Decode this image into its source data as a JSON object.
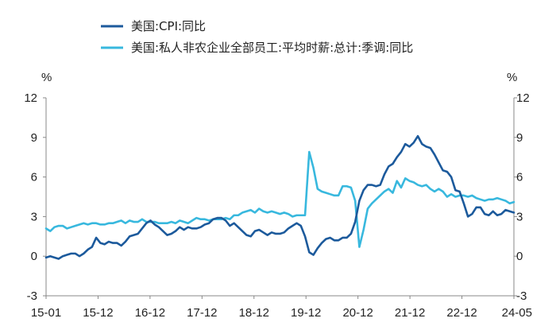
{
  "chart_data": {
    "type": "line",
    "y_unit_left": "%",
    "y_unit_right": "%",
    "ylim": [
      -3,
      12
    ],
    "y_ticks": [
      "12",
      "9",
      "6",
      "3",
      "0",
      "-3"
    ],
    "x_range": [
      "2015-01",
      "2024-05"
    ],
    "x_tick_labels": [
      "15-01",
      "15-12",
      "16-12",
      "17-12",
      "18-12",
      "19-12",
      "20-12",
      "21-12",
      "22-12",
      "24-05"
    ],
    "grid": false,
    "legend_position": "top-left",
    "series": [
      {
        "name": "美国:CPI:同比",
        "color": "#1c5a9c",
        "values": [
          [
            "2015-01",
            -0.1
          ],
          [
            "2015-02",
            0.0
          ],
          [
            "2015-03",
            -0.1
          ],
          [
            "2015-04",
            -0.2
          ],
          [
            "2015-05",
            0.0
          ],
          [
            "2015-06",
            0.1
          ],
          [
            "2015-07",
            0.2
          ],
          [
            "2015-08",
            0.2
          ],
          [
            "2015-09",
            0.0
          ],
          [
            "2015-10",
            0.2
          ],
          [
            "2015-11",
            0.5
          ],
          [
            "2015-12",
            0.7
          ],
          [
            "2016-01",
            1.4
          ],
          [
            "2016-02",
            1.0
          ],
          [
            "2016-03",
            0.9
          ],
          [
            "2016-04",
            1.1
          ],
          [
            "2016-05",
            1.0
          ],
          [
            "2016-06",
            1.0
          ],
          [
            "2016-07",
            0.8
          ],
          [
            "2016-08",
            1.1
          ],
          [
            "2016-09",
            1.5
          ],
          [
            "2016-10",
            1.6
          ],
          [
            "2016-11",
            1.7
          ],
          [
            "2016-12",
            2.1
          ],
          [
            "2017-01",
            2.5
          ],
          [
            "2017-02",
            2.7
          ],
          [
            "2017-03",
            2.4
          ],
          [
            "2017-04",
            2.2
          ],
          [
            "2017-05",
            1.9
          ],
          [
            "2017-06",
            1.6
          ],
          [
            "2017-07",
            1.7
          ],
          [
            "2017-08",
            1.9
          ],
          [
            "2017-09",
            2.2
          ],
          [
            "2017-10",
            2.0
          ],
          [
            "2017-11",
            2.2
          ],
          [
            "2017-12",
            2.1
          ],
          [
            "2018-01",
            2.1
          ],
          [
            "2018-02",
            2.2
          ],
          [
            "2018-03",
            2.4
          ],
          [
            "2018-04",
            2.5
          ],
          [
            "2018-05",
            2.8
          ],
          [
            "2018-06",
            2.9
          ],
          [
            "2018-07",
            2.9
          ],
          [
            "2018-08",
            2.7
          ],
          [
            "2018-09",
            2.3
          ],
          [
            "2018-10",
            2.5
          ],
          [
            "2018-11",
            2.2
          ],
          [
            "2018-12",
            1.9
          ],
          [
            "2019-01",
            1.6
          ],
          [
            "2019-02",
            1.5
          ],
          [
            "2019-03",
            1.9
          ],
          [
            "2019-04",
            2.0
          ],
          [
            "2019-05",
            1.8
          ],
          [
            "2019-06",
            1.6
          ],
          [
            "2019-07",
            1.8
          ],
          [
            "2019-08",
            1.7
          ],
          [
            "2019-09",
            1.7
          ],
          [
            "2019-10",
            1.8
          ],
          [
            "2019-11",
            2.1
          ],
          [
            "2019-12",
            2.3
          ],
          [
            "2020-01",
            2.5
          ],
          [
            "2020-02",
            2.3
          ],
          [
            "2020-03",
            1.5
          ],
          [
            "2020-04",
            0.3
          ],
          [
            "2020-05",
            0.1
          ],
          [
            "2020-06",
            0.6
          ],
          [
            "2020-07",
            1.0
          ],
          [
            "2020-08",
            1.3
          ],
          [
            "2020-09",
            1.4
          ],
          [
            "2020-10",
            1.2
          ],
          [
            "2020-11",
            1.2
          ],
          [
            "2020-12",
            1.4
          ],
          [
            "2021-01",
            1.4
          ],
          [
            "2021-02",
            1.7
          ],
          [
            "2021-03",
            2.6
          ],
          [
            "2021-04",
            4.2
          ],
          [
            "2021-05",
            5.0
          ],
          [
            "2021-06",
            5.4
          ],
          [
            "2021-07",
            5.4
          ],
          [
            "2021-08",
            5.3
          ],
          [
            "2021-09",
            5.4
          ],
          [
            "2021-10",
            6.2
          ],
          [
            "2021-11",
            6.8
          ],
          [
            "2021-12",
            7.0
          ],
          [
            "2022-01",
            7.5
          ],
          [
            "2022-02",
            7.9
          ],
          [
            "2022-03",
            8.5
          ],
          [
            "2022-04",
            8.3
          ],
          [
            "2022-05",
            8.6
          ],
          [
            "2022-06",
            9.1
          ],
          [
            "2022-07",
            8.5
          ],
          [
            "2022-08",
            8.3
          ],
          [
            "2022-09",
            8.2
          ],
          [
            "2022-10",
            7.7
          ],
          [
            "2022-11",
            7.1
          ],
          [
            "2022-12",
            6.5
          ],
          [
            "2023-01",
            6.4
          ],
          [
            "2023-02",
            6.0
          ],
          [
            "2023-03",
            5.0
          ],
          [
            "2023-04",
            4.9
          ],
          [
            "2023-05",
            4.0
          ],
          [
            "2023-06",
            3.0
          ],
          [
            "2023-07",
            3.2
          ],
          [
            "2023-08",
            3.7
          ],
          [
            "2023-09",
            3.7
          ],
          [
            "2023-10",
            3.2
          ],
          [
            "2023-11",
            3.1
          ],
          [
            "2023-12",
            3.4
          ],
          [
            "2024-01",
            3.1
          ],
          [
            "2024-02",
            3.2
          ],
          [
            "2024-03",
            3.5
          ],
          [
            "2024-04",
            3.4
          ],
          [
            "2024-05",
            3.3
          ]
        ]
      },
      {
        "name": "美国:私人非农企业全部员工:平均时薪:总计:季调:同比",
        "color": "#38b8de",
        "values": [
          [
            "2015-01",
            2.1
          ],
          [
            "2015-02",
            1.9
          ],
          [
            "2015-03",
            2.2
          ],
          [
            "2015-04",
            2.3
          ],
          [
            "2015-05",
            2.3
          ],
          [
            "2015-06",
            2.1
          ],
          [
            "2015-07",
            2.2
          ],
          [
            "2015-08",
            2.3
          ],
          [
            "2015-09",
            2.4
          ],
          [
            "2015-10",
            2.5
          ],
          [
            "2015-11",
            2.4
          ],
          [
            "2015-12",
            2.5
          ],
          [
            "2016-01",
            2.5
          ],
          [
            "2016-02",
            2.4
          ],
          [
            "2016-03",
            2.4
          ],
          [
            "2016-04",
            2.5
          ],
          [
            "2016-05",
            2.5
          ],
          [
            "2016-06",
            2.6
          ],
          [
            "2016-07",
            2.7
          ],
          [
            "2016-08",
            2.5
          ],
          [
            "2016-09",
            2.7
          ],
          [
            "2016-10",
            2.6
          ],
          [
            "2016-11",
            2.6
          ],
          [
            "2016-12",
            2.8
          ],
          [
            "2017-01",
            2.6
          ],
          [
            "2017-02",
            2.6
          ],
          [
            "2017-03",
            2.6
          ],
          [
            "2017-04",
            2.5
          ],
          [
            "2017-05",
            2.5
          ],
          [
            "2017-06",
            2.5
          ],
          [
            "2017-07",
            2.6
          ],
          [
            "2017-08",
            2.5
          ],
          [
            "2017-09",
            2.7
          ],
          [
            "2017-10",
            2.6
          ],
          [
            "2017-11",
            2.5
          ],
          [
            "2017-12",
            2.7
          ],
          [
            "2018-01",
            2.9
          ],
          [
            "2018-02",
            2.8
          ],
          [
            "2018-03",
            2.8
          ],
          [
            "2018-04",
            2.7
          ],
          [
            "2018-05",
            2.8
          ],
          [
            "2018-06",
            2.8
          ],
          [
            "2018-07",
            2.8
          ],
          [
            "2018-08",
            2.9
          ],
          [
            "2018-09",
            2.8
          ],
          [
            "2018-10",
            3.1
          ],
          [
            "2018-11",
            3.1
          ],
          [
            "2018-12",
            3.3
          ],
          [
            "2019-01",
            3.4
          ],
          [
            "2019-02",
            3.5
          ],
          [
            "2019-03",
            3.3
          ],
          [
            "2019-04",
            3.6
          ],
          [
            "2019-05",
            3.4
          ],
          [
            "2019-06",
            3.3
          ],
          [
            "2019-07",
            3.4
          ],
          [
            "2019-08",
            3.3
          ],
          [
            "2019-09",
            3.2
          ],
          [
            "2019-10",
            3.3
          ],
          [
            "2019-11",
            3.2
          ],
          [
            "2019-12",
            3.0
          ],
          [
            "2020-01",
            3.1
          ],
          [
            "2020-02",
            3.1
          ],
          [
            "2020-03",
            3.1
          ],
          [
            "2020-04",
            7.9
          ],
          [
            "2020-05",
            6.7
          ],
          [
            "2020-06",
            5.1
          ],
          [
            "2020-07",
            4.9
          ],
          [
            "2020-08",
            4.8
          ],
          [
            "2020-09",
            4.7
          ],
          [
            "2020-10",
            4.6
          ],
          [
            "2020-11",
            4.6
          ],
          [
            "2020-12",
            5.3
          ],
          [
            "2021-01",
            5.3
          ],
          [
            "2021-02",
            5.2
          ],
          [
            "2021-03",
            4.2
          ],
          [
            "2021-04",
            0.7
          ],
          [
            "2021-05",
            2.0
          ],
          [
            "2021-06",
            3.6
          ],
          [
            "2021-07",
            4.0
          ],
          [
            "2021-08",
            4.3
          ],
          [
            "2021-09",
            4.6
          ],
          [
            "2021-10",
            4.9
          ],
          [
            "2021-11",
            5.1
          ],
          [
            "2021-12",
            4.8
          ],
          [
            "2022-01",
            5.7
          ],
          [
            "2022-02",
            5.2
          ],
          [
            "2022-03",
            5.9
          ],
          [
            "2022-04",
            5.7
          ],
          [
            "2022-05",
            5.6
          ],
          [
            "2022-06",
            5.4
          ],
          [
            "2022-07",
            5.3
          ],
          [
            "2022-08",
            5.4
          ],
          [
            "2022-09",
            5.1
          ],
          [
            "2022-10",
            4.9
          ],
          [
            "2022-11",
            5.1
          ],
          [
            "2022-12",
            4.9
          ],
          [
            "2023-01",
            4.5
          ],
          [
            "2023-02",
            4.7
          ],
          [
            "2023-03",
            4.5
          ],
          [
            "2023-04",
            4.6
          ],
          [
            "2023-05",
            4.6
          ],
          [
            "2023-06",
            4.5
          ],
          [
            "2023-07",
            4.6
          ],
          [
            "2023-08",
            4.4
          ],
          [
            "2023-09",
            4.3
          ],
          [
            "2023-10",
            4.2
          ],
          [
            "2023-11",
            4.3
          ],
          [
            "2023-12",
            4.3
          ],
          [
            "2024-01",
            4.4
          ],
          [
            "2024-02",
            4.3
          ],
          [
            "2024-03",
            4.2
          ],
          [
            "2024-04",
            4.0
          ],
          [
            "2024-05",
            4.1
          ]
        ]
      }
    ]
  }
}
